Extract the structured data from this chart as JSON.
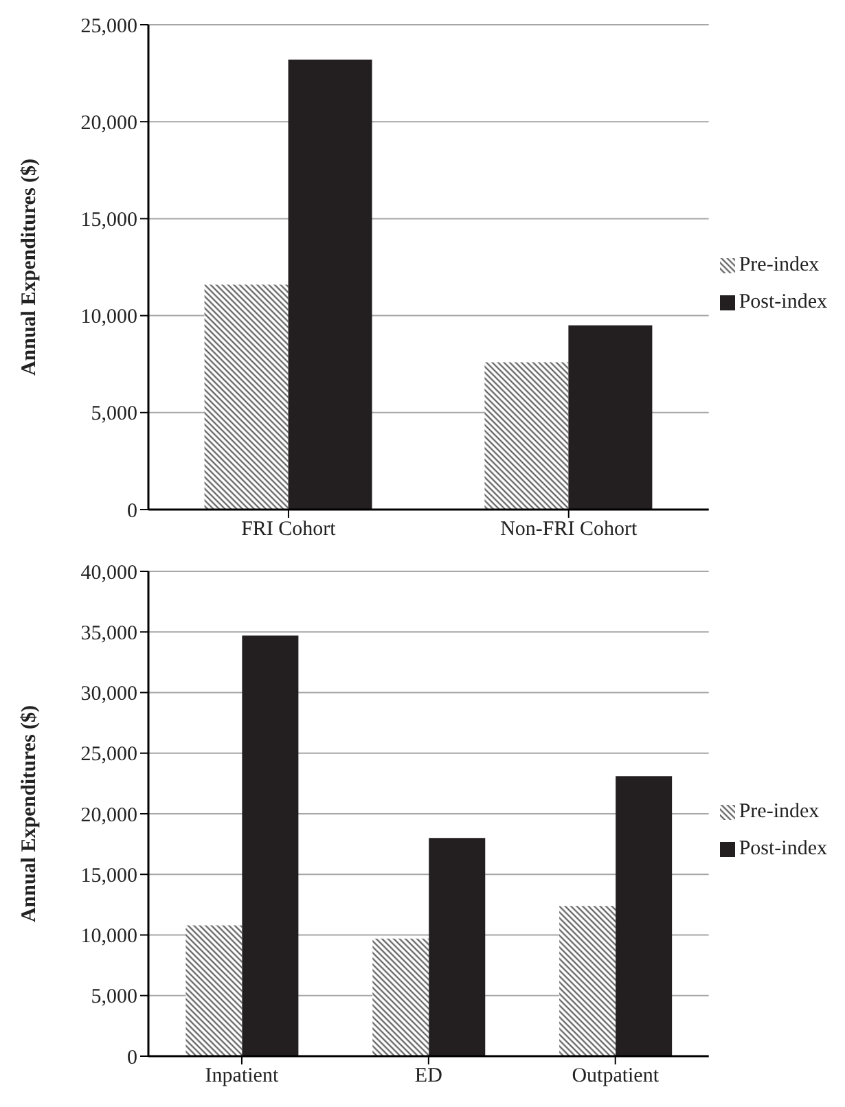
{
  "chart_data": [
    {
      "type": "bar",
      "ylabel": "Annual Expenditures ($)",
      "categories": [
        "FRI Cohort",
        "Non-FRI Cohort"
      ],
      "series": [
        {
          "name": "Pre-index",
          "color": "#4d4d4d",
          "values": [
            11600,
            7600
          ]
        },
        {
          "name": "Post-index",
          "color": "#231f20",
          "values": [
            23200,
            9500
          ]
        }
      ],
      "ylim": [
        0,
        25000
      ],
      "yticks": [
        {
          "value": 0,
          "label": "0"
        },
        {
          "value": 5000,
          "label": "5,000"
        },
        {
          "value": 10000,
          "label": "10,000"
        },
        {
          "value": 15000,
          "label": "15,000"
        },
        {
          "value": 20000,
          "label": "20,000"
        },
        {
          "value": 25000,
          "label": "25,000"
        }
      ],
      "grid": "y",
      "legend": "right"
    },
    {
      "type": "bar",
      "ylabel": "Annual Expenditures ($)",
      "categories": [
        "Inpatient",
        "ED",
        "Outpatient"
      ],
      "series": [
        {
          "name": "Pre-index",
          "color": "#4d4d4d",
          "values": [
            10800,
            9700,
            12400
          ]
        },
        {
          "name": "Post-index",
          "color": "#231f20",
          "values": [
            34700,
            18000,
            23100
          ]
        }
      ],
      "ylim": [
        0,
        40000
      ],
      "yticks": [
        {
          "value": 0,
          "label": "0"
        },
        {
          "value": 5000,
          "label": "5,000"
        },
        {
          "value": 10000,
          "label": "10,000"
        },
        {
          "value": 15000,
          "label": "15,000"
        },
        {
          "value": 20000,
          "label": "20,000"
        },
        {
          "value": 25000,
          "label": "25,000"
        },
        {
          "value": 30000,
          "label": "30,000"
        },
        {
          "value": 35000,
          "label": "35,000"
        },
        {
          "value": 40000,
          "label": "40,000"
        }
      ],
      "grid": "y",
      "legend": "right"
    }
  ]
}
